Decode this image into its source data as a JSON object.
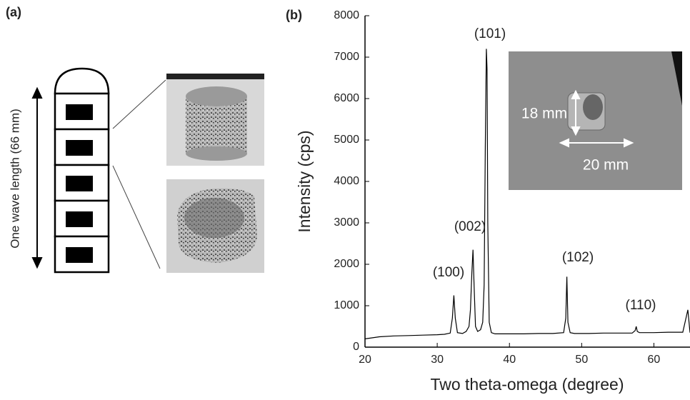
{
  "panel_a": {
    "label": "(a)",
    "dimension_label": "One wave length (66 mm)"
  },
  "chart_data": {
    "type": "line",
    "panel_label": "(b)",
    "x_label": "Two theta-omega (degree)",
    "y_label": "Intensity (cps)",
    "x": [
      20,
      22,
      24,
      26,
      28,
      30,
      31,
      31.8,
      32.1,
      32.3,
      32.5,
      32.8,
      33.5,
      34,
      34.4,
      34.6,
      34.8,
      34.95,
      35.1,
      35.3,
      35.6,
      36,
      36.3,
      36.5,
      36.65,
      36.8,
      36.9,
      37.0,
      37.2,
      37.5,
      38,
      40,
      42,
      44,
      46,
      47.5,
      47.8,
      47.95,
      48.1,
      48.4,
      49,
      51,
      53,
      55,
      57,
      57.4,
      57.55,
      57.7,
      58,
      60,
      62,
      64,
      64.7,
      65
    ],
    "values": [
      200,
      250,
      270,
      280,
      290,
      300,
      310,
      340,
      700,
      1250,
      700,
      350,
      330,
      380,
      500,
      900,
      1800,
      2350,
      1500,
      500,
      380,
      420,
      600,
      1500,
      4800,
      7200,
      6700,
      3000,
      600,
      350,
      320,
      320,
      320,
      330,
      330,
      350,
      700,
      1700,
      600,
      350,
      330,
      330,
      340,
      340,
      340,
      400,
      500,
      380,
      350,
      350,
      360,
      360,
      900,
      350
    ],
    "color": "#000000",
    "xlim": [
      20,
      65
    ],
    "xticks": [
      20,
      30,
      40,
      50,
      60
    ],
    "ylim": [
      0,
      8000
    ],
    "yticks": [
      0,
      1000,
      2000,
      3000,
      4000,
      5000,
      6000,
      7000,
      8000
    ],
    "annotations": [
      "(100)",
      "(002)",
      "(101)",
      "(102)",
      "(110)"
    ],
    "inset_labels": [
      "18 mm",
      "20 mm"
    ]
  }
}
